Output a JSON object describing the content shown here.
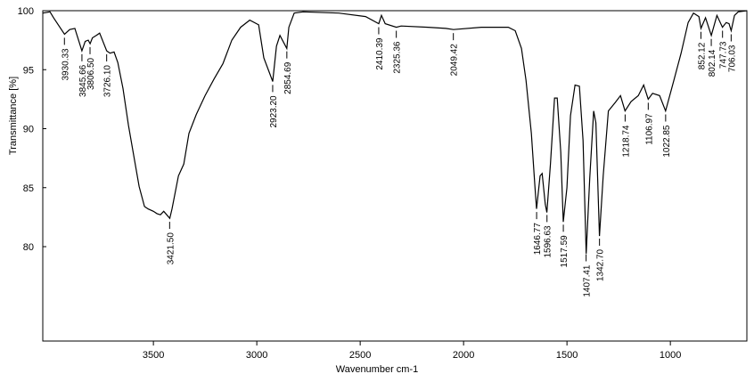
{
  "chart_data": {
    "type": "line",
    "x_label": "Wavenumber cm-1",
    "y_label": "Transmittance [%]",
    "xlim": [
      4035,
      630
    ],
    "ylim": [
      72,
      100
    ],
    "xticks": [
      3500,
      3000,
      2500,
      2000,
      1500,
      1000
    ],
    "yticks": [
      100,
      95,
      90,
      85,
      80
    ],
    "color": "#000000",
    "x": [
      4034,
      4000,
      3983,
      3930,
      3905,
      3880,
      3846,
      3830,
      3815,
      3806,
      3795,
      3776,
      3760,
      3726,
      3710,
      3690,
      3672,
      3647,
      3621,
      3595,
      3569,
      3543,
      3526,
      3500,
      3483,
      3466,
      3450,
      3421,
      3410,
      3379,
      3353,
      3328,
      3293,
      3250,
      3207,
      3164,
      3121,
      3078,
      3034,
      2991,
      2966,
      2923,
      2905,
      2888,
      2855,
      2845,
      2819,
      2776,
      2603,
      2474,
      2410,
      2397,
      2379,
      2325,
      2302,
      2172,
      2086,
      2049,
      1914,
      1784,
      1750,
      1720,
      1698,
      1672,
      1655,
      1647,
      1630,
      1620,
      1605,
      1597,
      1580,
      1560,
      1547,
      1530,
      1518,
      1500,
      1483,
      1461,
      1440,
      1422,
      1407,
      1390,
      1371,
      1360,
      1343,
      1325,
      1300,
      1267,
      1241,
      1219,
      1190,
      1155,
      1129,
      1107,
      1086,
      1052,
      1023,
      983,
      948,
      914,
      888,
      862,
      852,
      830,
      802,
      775,
      748,
      730,
      716,
      706,
      690,
      672,
      630
    ],
    "values": [
      99.8,
      99.9,
      99.4,
      98.0,
      98.4,
      98.5,
      96.6,
      97.4,
      97.5,
      97.2,
      97.7,
      97.9,
      98.1,
      96.6,
      96.4,
      96.5,
      95.6,
      93.4,
      90.3,
      87.7,
      85.1,
      83.4,
      83.2,
      83.0,
      82.8,
      82.7,
      83.0,
      82.4,
      83.2,
      86.0,
      87.0,
      89.6,
      91.2,
      92.8,
      94.2,
      95.5,
      97.5,
      98.6,
      99.2,
      98.8,
      96.0,
      94.0,
      97.0,
      97.9,
      96.8,
      98.6,
      99.8,
      99.9,
      99.8,
      99.5,
      98.9,
      99.6,
      98.9,
      98.6,
      98.7,
      98.6,
      98.5,
      98.4,
      98.6,
      98.6,
      98.3,
      96.8,
      94.1,
      89.6,
      85.1,
      83.2,
      86.0,
      86.2,
      83.6,
      82.9,
      87.0,
      92.6,
      92.6,
      88.0,
      82.1,
      85.0,
      91.1,
      93.7,
      93.6,
      89.0,
      79.4,
      85.8,
      91.5,
      90.5,
      80.9,
      86.0,
      91.5,
      92.2,
      92.8,
      91.5,
      92.3,
      92.8,
      93.7,
      92.5,
      93.0,
      92.8,
      91.5,
      94.1,
      96.4,
      99.0,
      99.8,
      99.5,
      98.5,
      99.4,
      97.9,
      99.6,
      98.6,
      99.0,
      98.9,
      98.3,
      99.6,
      99.9,
      100
    ],
    "peaks": [
      3930.33,
      3845.66,
      {
        "value": 3806.5,
        "label": "3806.50"
      },
      {
        "value": 3726.1,
        "label": "3726.10"
      },
      {
        "value": 3421.5,
        "label": "3421.50"
      },
      {
        "value": 2923.2,
        "label": "2923.20"
      },
      2854.69,
      2410.39,
      2325.36,
      2049.42,
      1646.77,
      1596.63,
      1517.59,
      1407.41,
      {
        "value": 1342.7,
        "label": "1342.70"
      },
      1218.74,
      1106.97,
      1022.85,
      852.12,
      802.14,
      747.73,
      706.03
    ]
  }
}
